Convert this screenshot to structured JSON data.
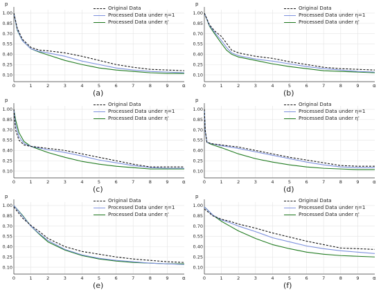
{
  "chart_data": [
    {
      "type": "line",
      "panel_label": "(a)",
      "ylabel": "p",
      "xlabel": "α",
      "xlim": [
        0,
        10
      ],
      "ylim": [
        0.0,
        1.05
      ],
      "xticks": [
        0,
        1,
        2,
        3,
        4,
        5,
        6,
        7,
        8,
        9
      ],
      "yticks": [
        1.0,
        0.85,
        0.7,
        0.55,
        0.4,
        0.25,
        0.1
      ],
      "ytick_labels": [
        "1.00",
        "0.85",
        "0.70",
        "0.55",
        "0.40",
        "0.25",
        "0.10"
      ],
      "grid": true,
      "legend_position": "top-right",
      "series": [
        {
          "name": "Original Data",
          "style": "dashed",
          "color": "#111111",
          "x": [
            0,
            0.2,
            0.5,
            1,
            1.5,
            2,
            3,
            4,
            5,
            6,
            7,
            8,
            9,
            10
          ],
          "y": [
            1.0,
            0.78,
            0.62,
            0.5,
            0.46,
            0.45,
            0.42,
            0.37,
            0.31,
            0.25,
            0.21,
            0.18,
            0.17,
            0.16
          ]
        },
        {
          "name": "Processed Data under η=1",
          "style": "solid",
          "color": "#7b8fdd",
          "x": [
            0,
            0.2,
            0.5,
            1,
            1.5,
            2,
            3,
            4,
            5,
            6,
            7,
            8,
            9,
            10
          ],
          "y": [
            1.0,
            0.76,
            0.6,
            0.48,
            0.44,
            0.42,
            0.37,
            0.3,
            0.25,
            0.2,
            0.17,
            0.15,
            0.14,
            0.13
          ]
        },
        {
          "name": "Processed Data under η'",
          "style": "solid",
          "color": "#1f7a1f",
          "x": [
            0,
            0.2,
            0.5,
            1,
            1.5,
            2,
            3,
            4,
            5,
            6,
            7,
            8,
            9,
            10
          ],
          "y": [
            1.0,
            0.75,
            0.6,
            0.48,
            0.43,
            0.39,
            0.31,
            0.25,
            0.2,
            0.17,
            0.15,
            0.13,
            0.12,
            0.12
          ]
        }
      ]
    },
    {
      "type": "line",
      "panel_label": "(b)",
      "ylabel": "p",
      "xlabel": "α",
      "xlim": [
        0,
        10
      ],
      "ylim": [
        0.0,
        1.05
      ],
      "xticks": [
        0,
        1,
        2,
        3,
        4,
        5,
        6,
        7,
        8,
        9
      ],
      "yticks": [
        1.0,
        0.85,
        0.7,
        0.55,
        0.4,
        0.25,
        0.1
      ],
      "ytick_labels": [
        "1.00",
        "0.85",
        "0.70",
        "0.55",
        "0.40",
        "0.25",
        "0.10"
      ],
      "grid": true,
      "legend_position": "top-right",
      "series": [
        {
          "name": "Original Data",
          "style": "dashed",
          "color": "#111111",
          "x": [
            0,
            0.3,
            0.6,
            1,
            1.3,
            1.6,
            2,
            3,
            4,
            5,
            6,
            7,
            8,
            9,
            10
          ],
          "y": [
            1.0,
            0.83,
            0.74,
            0.66,
            0.56,
            0.46,
            0.42,
            0.37,
            0.34,
            0.29,
            0.25,
            0.21,
            0.19,
            0.18,
            0.17
          ]
        },
        {
          "name": "Processed Data under η=1",
          "style": "solid",
          "color": "#7b8fdd",
          "x": [
            0,
            0.3,
            0.6,
            1,
            1.3,
            1.6,
            2,
            3,
            4,
            5,
            6,
            7,
            8,
            9,
            10
          ],
          "y": [
            1.0,
            0.82,
            0.72,
            0.6,
            0.5,
            0.42,
            0.38,
            0.33,
            0.3,
            0.26,
            0.22,
            0.19,
            0.17,
            0.15,
            0.14
          ]
        },
        {
          "name": "Processed Data under η'",
          "style": "solid",
          "color": "#1f7a1f",
          "x": [
            0,
            0.3,
            0.6,
            1,
            1.3,
            1.6,
            2,
            3,
            4,
            5,
            6,
            7,
            8,
            9,
            10
          ],
          "y": [
            1.0,
            0.81,
            0.7,
            0.56,
            0.46,
            0.4,
            0.36,
            0.31,
            0.26,
            0.22,
            0.19,
            0.16,
            0.15,
            0.14,
            0.13
          ]
        }
      ]
    },
    {
      "type": "line",
      "panel_label": "(c)",
      "ylabel": "p",
      "xlabel": "α",
      "xlim": [
        0,
        10
      ],
      "ylim": [
        0.0,
        1.05
      ],
      "xticks": [
        0,
        1,
        2,
        3,
        4,
        5,
        6,
        7,
        8,
        9
      ],
      "yticks": [
        1.0,
        0.85,
        0.7,
        0.55,
        0.4,
        0.25,
        0.1
      ],
      "ytick_labels": [
        "1.00",
        "0.85",
        "0.70",
        "0.55",
        "0.40",
        "0.25",
        "0.10"
      ],
      "grid": true,
      "legend_position": "top-right",
      "series": [
        {
          "name": "Original Data",
          "style": "dashed",
          "color": "#111111",
          "x": [
            0,
            0.1,
            0.3,
            0.6,
            1,
            2,
            3,
            4,
            5,
            6,
            7,
            8,
            9,
            10
          ],
          "y": [
            1.0,
            0.7,
            0.55,
            0.48,
            0.46,
            0.43,
            0.4,
            0.35,
            0.3,
            0.25,
            0.2,
            0.16,
            0.16,
            0.16
          ]
        },
        {
          "name": "Processed Data under η=1",
          "style": "solid",
          "color": "#7b8fdd",
          "x": [
            0,
            0.1,
            0.3,
            0.6,
            1,
            2,
            3,
            4,
            5,
            6,
            7,
            8,
            9,
            10
          ],
          "y": [
            1.0,
            0.78,
            0.6,
            0.5,
            0.46,
            0.41,
            0.37,
            0.32,
            0.26,
            0.22,
            0.18,
            0.15,
            0.14,
            0.14
          ]
        },
        {
          "name": "Processed Data under η'",
          "style": "solid",
          "color": "#1f7a1f",
          "x": [
            0,
            0.1,
            0.3,
            0.6,
            1,
            2,
            3,
            4,
            5,
            6,
            7,
            8,
            9,
            10
          ],
          "y": [
            1.0,
            0.85,
            0.66,
            0.53,
            0.46,
            0.37,
            0.3,
            0.24,
            0.2,
            0.17,
            0.15,
            0.13,
            0.13,
            0.13
          ]
        }
      ]
    },
    {
      "type": "line",
      "panel_label": "(d)",
      "ylabel": "p",
      "xlabel": "α",
      "xlim": [
        0,
        10
      ],
      "ylim": [
        0.0,
        1.05
      ],
      "xticks": [
        0,
        1,
        2,
        3,
        4,
        5,
        6,
        7,
        8,
        9
      ],
      "yticks": [
        1.0,
        0.85,
        0.7,
        0.55,
        0.4,
        0.25,
        0.1
      ],
      "ytick_labels": [
        "1.00",
        "0.85",
        "0.70",
        "0.55",
        "0.40",
        "0.25",
        "0.10"
      ],
      "grid": true,
      "legend_position": "top-right",
      "series": [
        {
          "name": "Original Data",
          "style": "dashed",
          "color": "#111111",
          "x": [
            0,
            0.05,
            0.15,
            0.4,
            1,
            2,
            3,
            4,
            5,
            6,
            7,
            8,
            9,
            10
          ],
          "y": [
            1.0,
            0.7,
            0.52,
            0.5,
            0.48,
            0.45,
            0.4,
            0.35,
            0.3,
            0.26,
            0.22,
            0.18,
            0.17,
            0.17
          ]
        },
        {
          "name": "Processed Data under η=1",
          "style": "solid",
          "color": "#7b8fdd",
          "x": [
            0,
            0.05,
            0.15,
            0.4,
            1,
            2,
            3,
            4,
            5,
            6,
            7,
            8,
            9,
            10
          ],
          "y": [
            1.0,
            0.68,
            0.52,
            0.5,
            0.47,
            0.43,
            0.38,
            0.33,
            0.28,
            0.23,
            0.19,
            0.16,
            0.15,
            0.15
          ]
        },
        {
          "name": "Processed Data under η'",
          "style": "solid",
          "color": "#1f7a1f",
          "x": [
            0,
            0.05,
            0.15,
            0.4,
            1,
            2,
            3,
            4,
            5,
            6,
            7,
            8,
            9,
            10
          ],
          "y": [
            1.0,
            0.68,
            0.52,
            0.49,
            0.44,
            0.35,
            0.28,
            0.23,
            0.19,
            0.16,
            0.14,
            0.13,
            0.12,
            0.12
          ]
        }
      ]
    },
    {
      "type": "line",
      "panel_label": "(e)",
      "ylabel": "p",
      "xlabel": "α",
      "xlim": [
        0,
        10
      ],
      "ylim": [
        0.0,
        1.05
      ],
      "xticks": [
        0,
        1,
        2,
        3,
        4,
        5,
        6,
        7,
        8,
        9
      ],
      "yticks": [
        1.0,
        0.85,
        0.7,
        0.55,
        0.4,
        0.25,
        0.1
      ],
      "ytick_labels": [
        "1.00",
        "0.85",
        "0.70",
        "0.55",
        "0.40",
        "0.25",
        "0.10"
      ],
      "grid": true,
      "legend_position": "top-right",
      "series": [
        {
          "name": "Original Data",
          "style": "dashed",
          "color": "#111111",
          "x": [
            0,
            0.5,
            1,
            1.5,
            2,
            3,
            4,
            5,
            6,
            7,
            8,
            9,
            10
          ],
          "y": [
            0.98,
            0.82,
            0.71,
            0.62,
            0.52,
            0.4,
            0.33,
            0.29,
            0.25,
            0.22,
            0.2,
            0.18,
            0.17
          ]
        },
        {
          "name": "Processed Data under η=1",
          "style": "solid",
          "color": "#7b8fdd",
          "x": [
            0,
            0.5,
            1,
            1.5,
            2,
            3,
            4,
            5,
            6,
            7,
            8,
            9,
            10
          ],
          "y": [
            1.0,
            0.85,
            0.7,
            0.59,
            0.49,
            0.36,
            0.28,
            0.23,
            0.2,
            0.18,
            0.16,
            0.15,
            0.14
          ]
        },
        {
          "name": "Processed Data under η'",
          "style": "solid",
          "color": "#1f7a1f",
          "x": [
            0,
            0.5,
            1,
            1.5,
            2,
            3,
            4,
            5,
            6,
            7,
            8,
            9,
            10
          ],
          "y": [
            1.0,
            0.86,
            0.7,
            0.58,
            0.47,
            0.35,
            0.27,
            0.22,
            0.19,
            0.17,
            0.16,
            0.15,
            0.15
          ]
        }
      ]
    },
    {
      "type": "line",
      "panel_label": "(f)",
      "ylabel": "p",
      "xlabel": "α",
      "xlim": [
        0,
        10
      ],
      "ylim": [
        0.0,
        1.05
      ],
      "xticks": [
        0,
        1,
        2,
        3,
        4,
        5,
        6,
        7,
        8,
        9
      ],
      "yticks": [
        1.0,
        0.85,
        0.7,
        0.55,
        0.4,
        0.25,
        0.1
      ],
      "ytick_labels": [
        "1.00",
        "0.85",
        "0.70",
        "0.55",
        "0.40",
        "0.25",
        "0.10"
      ],
      "grid": true,
      "legend_position": "top-right",
      "series": [
        {
          "name": "Original Data",
          "style": "dashed",
          "color": "#111111",
          "x": [
            0,
            0.5,
            1,
            1.5,
            2,
            3,
            4,
            5,
            6,
            7,
            8,
            9,
            10
          ],
          "y": [
            0.95,
            0.85,
            0.8,
            0.77,
            0.73,
            0.67,
            0.6,
            0.54,
            0.48,
            0.43,
            0.38,
            0.37,
            0.36
          ]
        },
        {
          "name": "Processed Data under η=1",
          "style": "solid",
          "color": "#7b8fdd",
          "x": [
            0,
            0.5,
            1,
            1.5,
            2,
            3,
            4,
            5,
            6,
            7,
            8,
            9,
            10
          ],
          "y": [
            0.98,
            0.86,
            0.79,
            0.75,
            0.7,
            0.62,
            0.53,
            0.47,
            0.41,
            0.37,
            0.34,
            0.32,
            0.3
          ]
        },
        {
          "name": "Processed Data under η'",
          "style": "solid",
          "color": "#1f7a1f",
          "x": [
            0,
            0.5,
            1,
            1.5,
            2,
            3,
            4,
            5,
            6,
            7,
            8,
            9,
            10
          ],
          "y": [
            0.98,
            0.86,
            0.77,
            0.7,
            0.63,
            0.52,
            0.43,
            0.37,
            0.32,
            0.29,
            0.27,
            0.26,
            0.25
          ]
        }
      ]
    }
  ]
}
